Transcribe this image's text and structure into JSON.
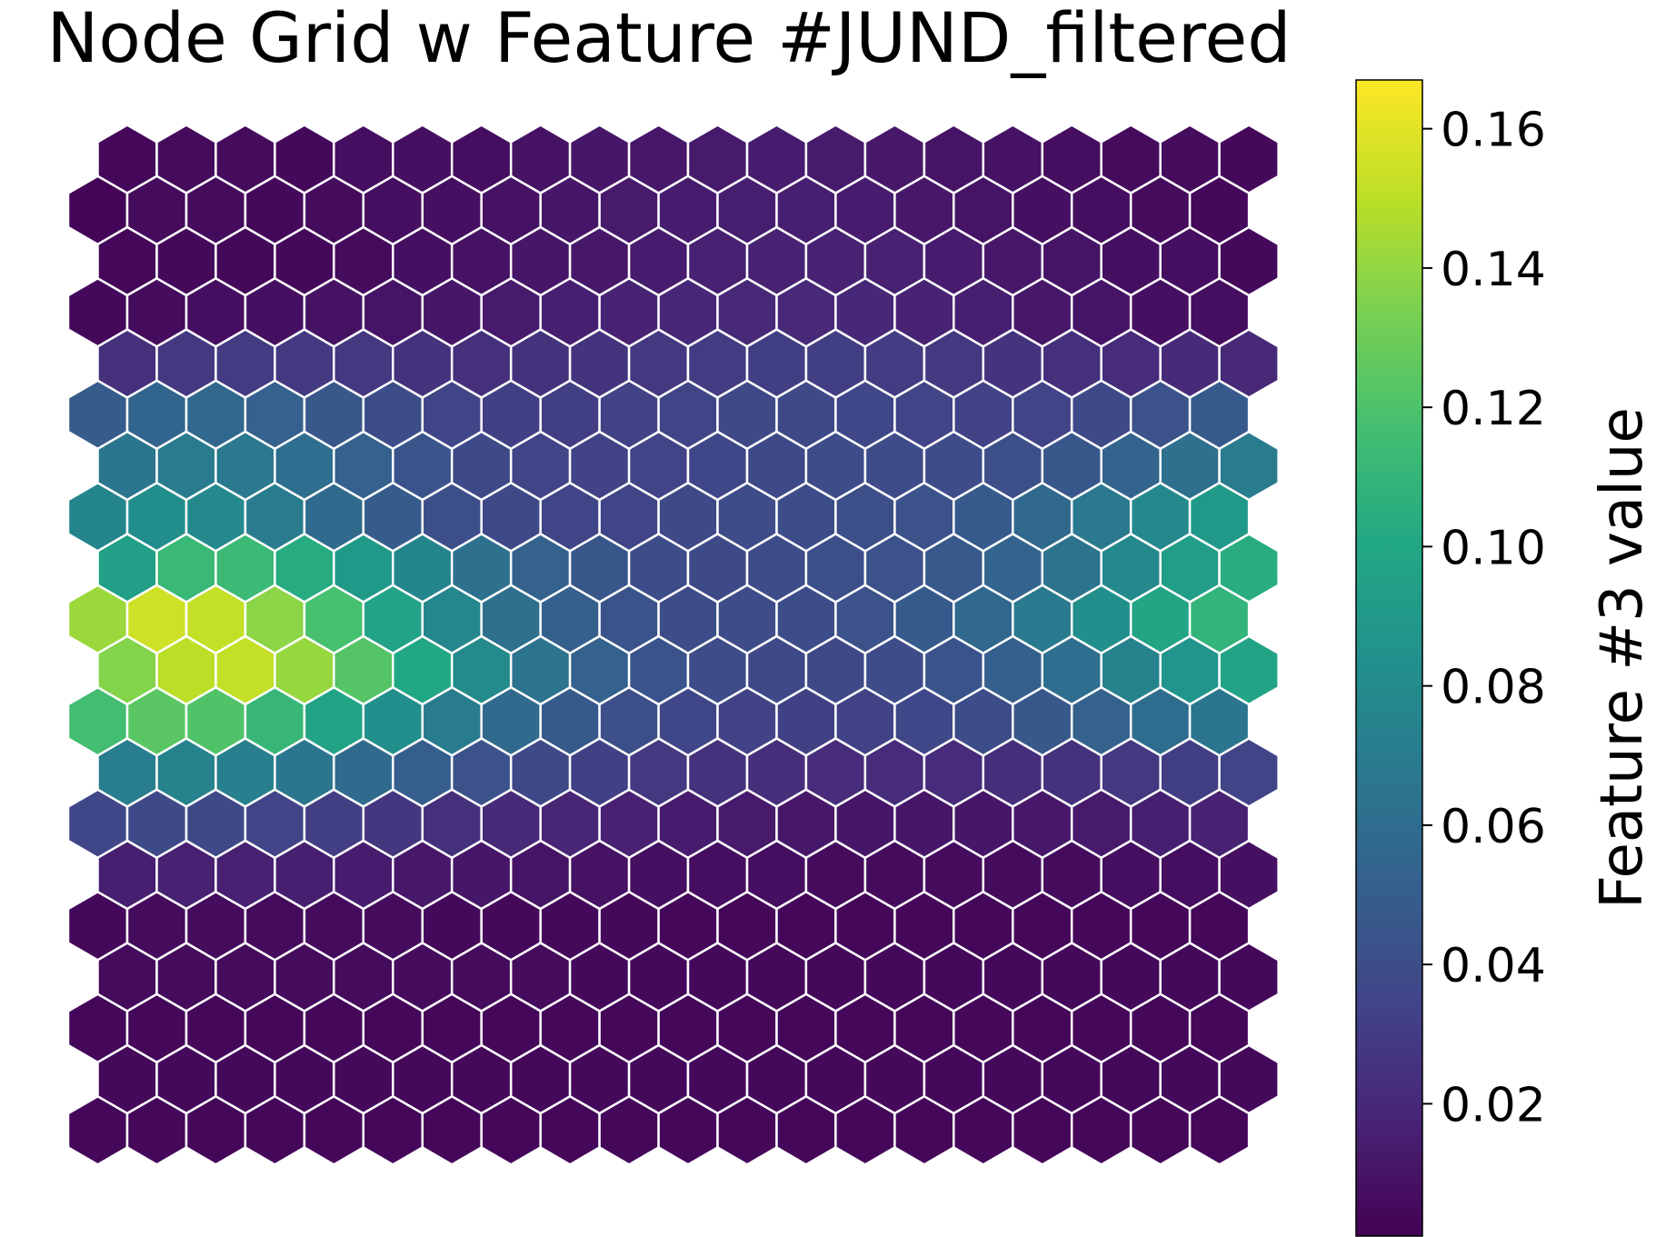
{
  "chart_data": {
    "type": "heatmap",
    "layout": "hexagonal-grid",
    "title": "Node Grid w Feature #JUND_filtered",
    "rows": 20,
    "cols": 20,
    "colormap": "viridis",
    "grid": false,
    "axes_visible": false,
    "cell_border_color": "#ffffff",
    "colorbar": {
      "label": "Feature #3 value",
      "vmin": 0.001,
      "vmax": 0.167,
      "ticks": [
        0.02,
        0.04,
        0.06,
        0.08,
        0.1,
        0.12,
        0.14,
        0.16
      ],
      "tick_labels": [
        "0.02",
        "0.04",
        "0.06",
        "0.08",
        "0.10",
        "0.12",
        "0.14",
        "0.16"
      ],
      "placement": "right"
    },
    "values": [
      [
        0.004,
        0.006,
        0.006,
        0.005,
        0.007,
        0.008,
        0.007,
        0.009,
        0.011,
        0.012,
        0.013,
        0.014,
        0.013,
        0.012,
        0.01,
        0.009,
        0.007,
        0.006,
        0.006,
        0.005
      ],
      [
        0.003,
        0.006,
        0.006,
        0.005,
        0.006,
        0.007,
        0.008,
        0.009,
        0.011,
        0.013,
        0.014,
        0.015,
        0.015,
        0.014,
        0.012,
        0.01,
        0.008,
        0.007,
        0.006,
        0.005
      ],
      [
        0.004,
        0.005,
        0.005,
        0.005,
        0.006,
        0.008,
        0.009,
        0.011,
        0.012,
        0.014,
        0.016,
        0.017,
        0.017,
        0.016,
        0.014,
        0.012,
        0.01,
        0.008,
        0.007,
        0.005
      ],
      [
        0.005,
        0.006,
        0.007,
        0.008,
        0.009,
        0.01,
        0.011,
        0.013,
        0.015,
        0.017,
        0.019,
        0.02,
        0.02,
        0.019,
        0.017,
        0.015,
        0.012,
        0.01,
        0.008,
        0.007
      ],
      [
        0.024,
        0.028,
        0.03,
        0.029,
        0.028,
        0.025,
        0.024,
        0.025,
        0.026,
        0.028,
        0.03,
        0.031,
        0.031,
        0.03,
        0.028,
        0.026,
        0.024,
        0.022,
        0.021,
        0.02
      ],
      [
        0.049,
        0.055,
        0.057,
        0.052,
        0.046,
        0.04,
        0.035,
        0.032,
        0.031,
        0.033,
        0.035,
        0.037,
        0.037,
        0.036,
        0.034,
        0.033,
        0.034,
        0.038,
        0.043,
        0.048
      ],
      [
        0.066,
        0.07,
        0.068,
        0.061,
        0.052,
        0.044,
        0.038,
        0.034,
        0.033,
        0.034,
        0.036,
        0.038,
        0.039,
        0.039,
        0.039,
        0.041,
        0.046,
        0.054,
        0.062,
        0.07
      ],
      [
        0.076,
        0.082,
        0.079,
        0.07,
        0.059,
        0.049,
        0.041,
        0.037,
        0.035,
        0.035,
        0.037,
        0.039,
        0.04,
        0.041,
        0.043,
        0.048,
        0.057,
        0.068,
        0.079,
        0.09
      ],
      [
        0.095,
        0.112,
        0.113,
        0.103,
        0.09,
        0.076,
        0.063,
        0.053,
        0.045,
        0.04,
        0.038,
        0.039,
        0.041,
        0.043,
        0.047,
        0.054,
        0.065,
        0.079,
        0.093,
        0.104
      ],
      [
        0.142,
        0.155,
        0.152,
        0.138,
        0.118,
        0.096,
        0.077,
        0.062,
        0.051,
        0.044,
        0.04,
        0.039,
        0.04,
        0.043,
        0.048,
        0.057,
        0.069,
        0.083,
        0.098,
        0.109
      ],
      [
        0.136,
        0.15,
        0.152,
        0.141,
        0.122,
        0.1,
        0.08,
        0.064,
        0.052,
        0.044,
        0.039,
        0.037,
        0.037,
        0.039,
        0.044,
        0.051,
        0.061,
        0.074,
        0.087,
        0.097
      ],
      [
        0.116,
        0.124,
        0.121,
        0.111,
        0.097,
        0.083,
        0.07,
        0.058,
        0.048,
        0.041,
        0.036,
        0.033,
        0.032,
        0.033,
        0.036,
        0.04,
        0.046,
        0.053,
        0.06,
        0.066
      ],
      [
        0.071,
        0.074,
        0.072,
        0.066,
        0.058,
        0.05,
        0.043,
        0.037,
        0.032,
        0.028,
        0.025,
        0.023,
        0.022,
        0.022,
        0.022,
        0.023,
        0.025,
        0.028,
        0.031,
        0.034
      ],
      [
        0.036,
        0.038,
        0.037,
        0.034,
        0.031,
        0.027,
        0.024,
        0.021,
        0.018,
        0.016,
        0.014,
        0.013,
        0.012,
        0.011,
        0.011,
        0.011,
        0.012,
        0.013,
        0.015,
        0.017
      ],
      [
        0.015,
        0.016,
        0.016,
        0.015,
        0.014,
        0.012,
        0.011,
        0.01,
        0.009,
        0.008,
        0.007,
        0.007,
        0.006,
        0.006,
        0.006,
        0.006,
        0.006,
        0.007,
        0.007,
        0.008
      ],
      [
        0.005,
        0.006,
        0.006,
        0.006,
        0.006,
        0.006,
        0.005,
        0.005,
        0.005,
        0.005,
        0.004,
        0.004,
        0.004,
        0.004,
        0.004,
        0.004,
        0.004,
        0.004,
        0.004,
        0.004
      ],
      [
        0.006,
        0.006,
        0.006,
        0.006,
        0.006,
        0.006,
        0.006,
        0.006,
        0.005,
        0.005,
        0.005,
        0.005,
        0.005,
        0.005,
        0.005,
        0.005,
        0.005,
        0.005,
        0.005,
        0.005
      ],
      [
        0.004,
        0.004,
        0.004,
        0.004,
        0.004,
        0.004,
        0.004,
        0.004,
        0.004,
        0.004,
        0.004,
        0.004,
        0.004,
        0.004,
        0.004,
        0.004,
        0.004,
        0.004,
        0.004,
        0.004
      ],
      [
        0.005,
        0.005,
        0.005,
        0.005,
        0.005,
        0.005,
        0.005,
        0.005,
        0.005,
        0.005,
        0.005,
        0.005,
        0.005,
        0.005,
        0.005,
        0.005,
        0.005,
        0.005,
        0.005,
        0.005
      ],
      [
        0.004,
        0.004,
        0.004,
        0.004,
        0.004,
        0.004,
        0.004,
        0.004,
        0.004,
        0.004,
        0.004,
        0.004,
        0.004,
        0.004,
        0.004,
        0.004,
        0.004,
        0.004,
        0.004,
        0.004
      ]
    ]
  }
}
